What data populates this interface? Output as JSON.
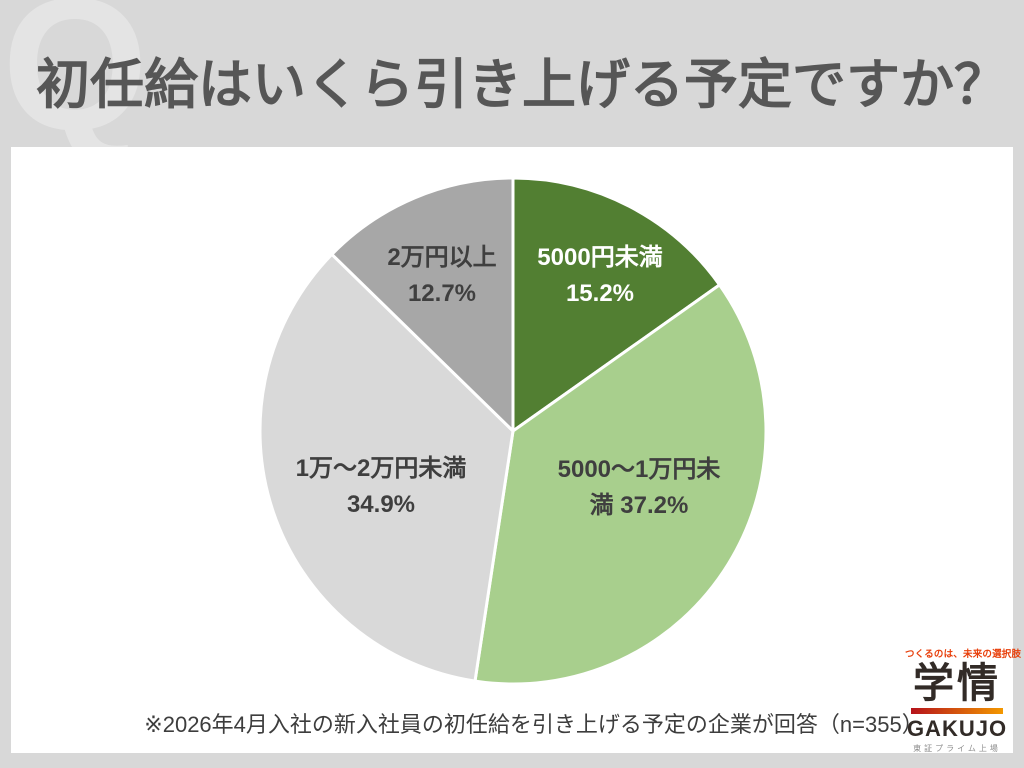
{
  "header": {
    "watermark": "Q",
    "title": "初任給はいくら引き上げる予定ですか？"
  },
  "chart_data": {
    "type": "pie",
    "unit": "%",
    "start_angle_deg": 0,
    "direction": "clockwise",
    "stroke_color": "#ffffff",
    "categories": [
      "5000円未満",
      "5000～1万円未満",
      "1万～2万円未満",
      "2万円以上"
    ],
    "values": [
      15.2,
      37.2,
      34.9,
      12.7
    ],
    "slices": [
      {
        "label": "5000円未満",
        "value": 15.2,
        "color": "#527f32",
        "text_color": "#ffffff",
        "lines": [
          "5000円未満",
          "15.2%"
        ]
      },
      {
        "label": "5000～1万円未満",
        "value": 37.2,
        "color": "#a8cf8d",
        "text_color": "#3f3f3f",
        "lines": [
          "5000～1万円未",
          "満 37.2%"
        ]
      },
      {
        "label": "1万～2万円未満",
        "value": 34.9,
        "color": "#d9d9d9",
        "text_color": "#3f3f3f",
        "lines": [
          "1万～2万円未満",
          "34.9%"
        ]
      },
      {
        "label": "2万円以上",
        "value": 12.7,
        "color": "#a7a7a7",
        "text_color": "#3f3f3f",
        "lines": [
          "2万円以上",
          "12.7%"
        ]
      }
    ]
  },
  "footnote": "※2026年4月入社の新入社員の初任給を引き上げる予定の企業が回答（n=355）",
  "logo": {
    "tagline": "つくるのは、未来の選択肢",
    "name_jp": "学情",
    "name_en": "GAKUJO",
    "listing": "東証プライム上場",
    "tagline_color": "#e8400c",
    "bar_gradient_start": "#b5121b",
    "bar_gradient_end": "#f39800"
  },
  "colors": {
    "page_bg": "#d8d8d8",
    "panel_bg": "#ffffff",
    "title_text": "#565656",
    "watermark": "#e4e4e4",
    "footnote_text": "#3d3d3d"
  }
}
